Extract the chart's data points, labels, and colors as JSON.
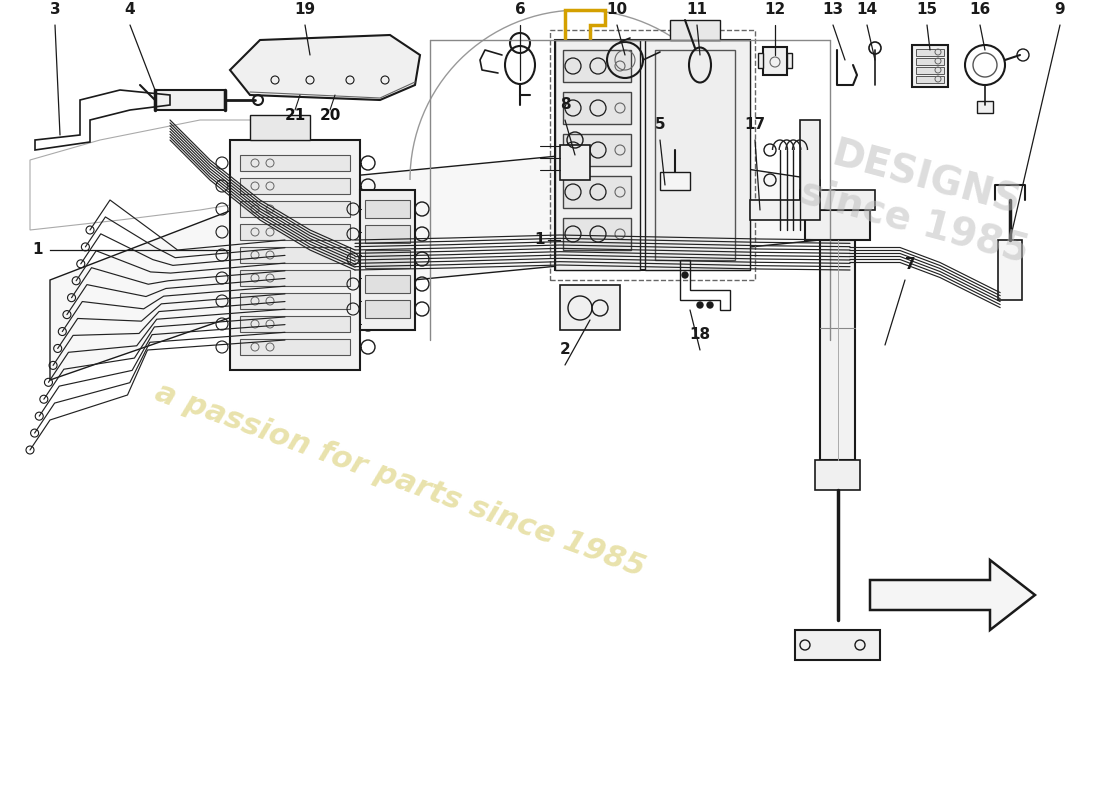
{
  "bg": "#ffffff",
  "lc": "#1a1a1a",
  "lc_light": "#555555",
  "lc_thin": "#333333",
  "wm_text": "a passion for parts since 1985",
  "wm_color": "#c8b830",
  "wm_alpha": 0.4,
  "logo_color": "#cccccc",
  "logo_alpha": 0.5,
  "label_fs": 11,
  "label_bold_fs": 12
}
